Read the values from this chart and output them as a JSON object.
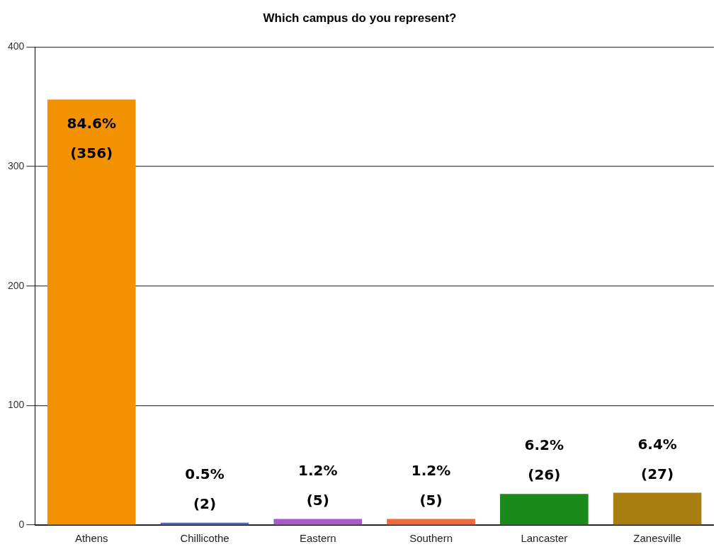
{
  "chart_data": {
    "type": "bar",
    "title": "Which campus do you represent?",
    "categories": [
      "Athens",
      "Chillicothe",
      "Eastern",
      "Southern",
      "Lancaster",
      "Zanesville"
    ],
    "values": [
      356,
      2,
      5,
      5,
      26,
      27
    ],
    "colors": [
      "#f39200",
      "#4f6fb8",
      "#a85cc8",
      "#ee6a3a",
      "#1a8a1a",
      "#a87f10"
    ],
    "value_labels": [
      "84.6% (356)",
      "0.5% (2)",
      "1.2% (5)",
      "1.2% (5)",
      "6.2% (26)",
      "6.4% (27)"
    ],
    "ylim": [
      0,
      400
    ],
    "yticks": [
      0,
      100,
      200,
      300,
      400
    ],
    "grid": "y",
    "legend": false
  }
}
